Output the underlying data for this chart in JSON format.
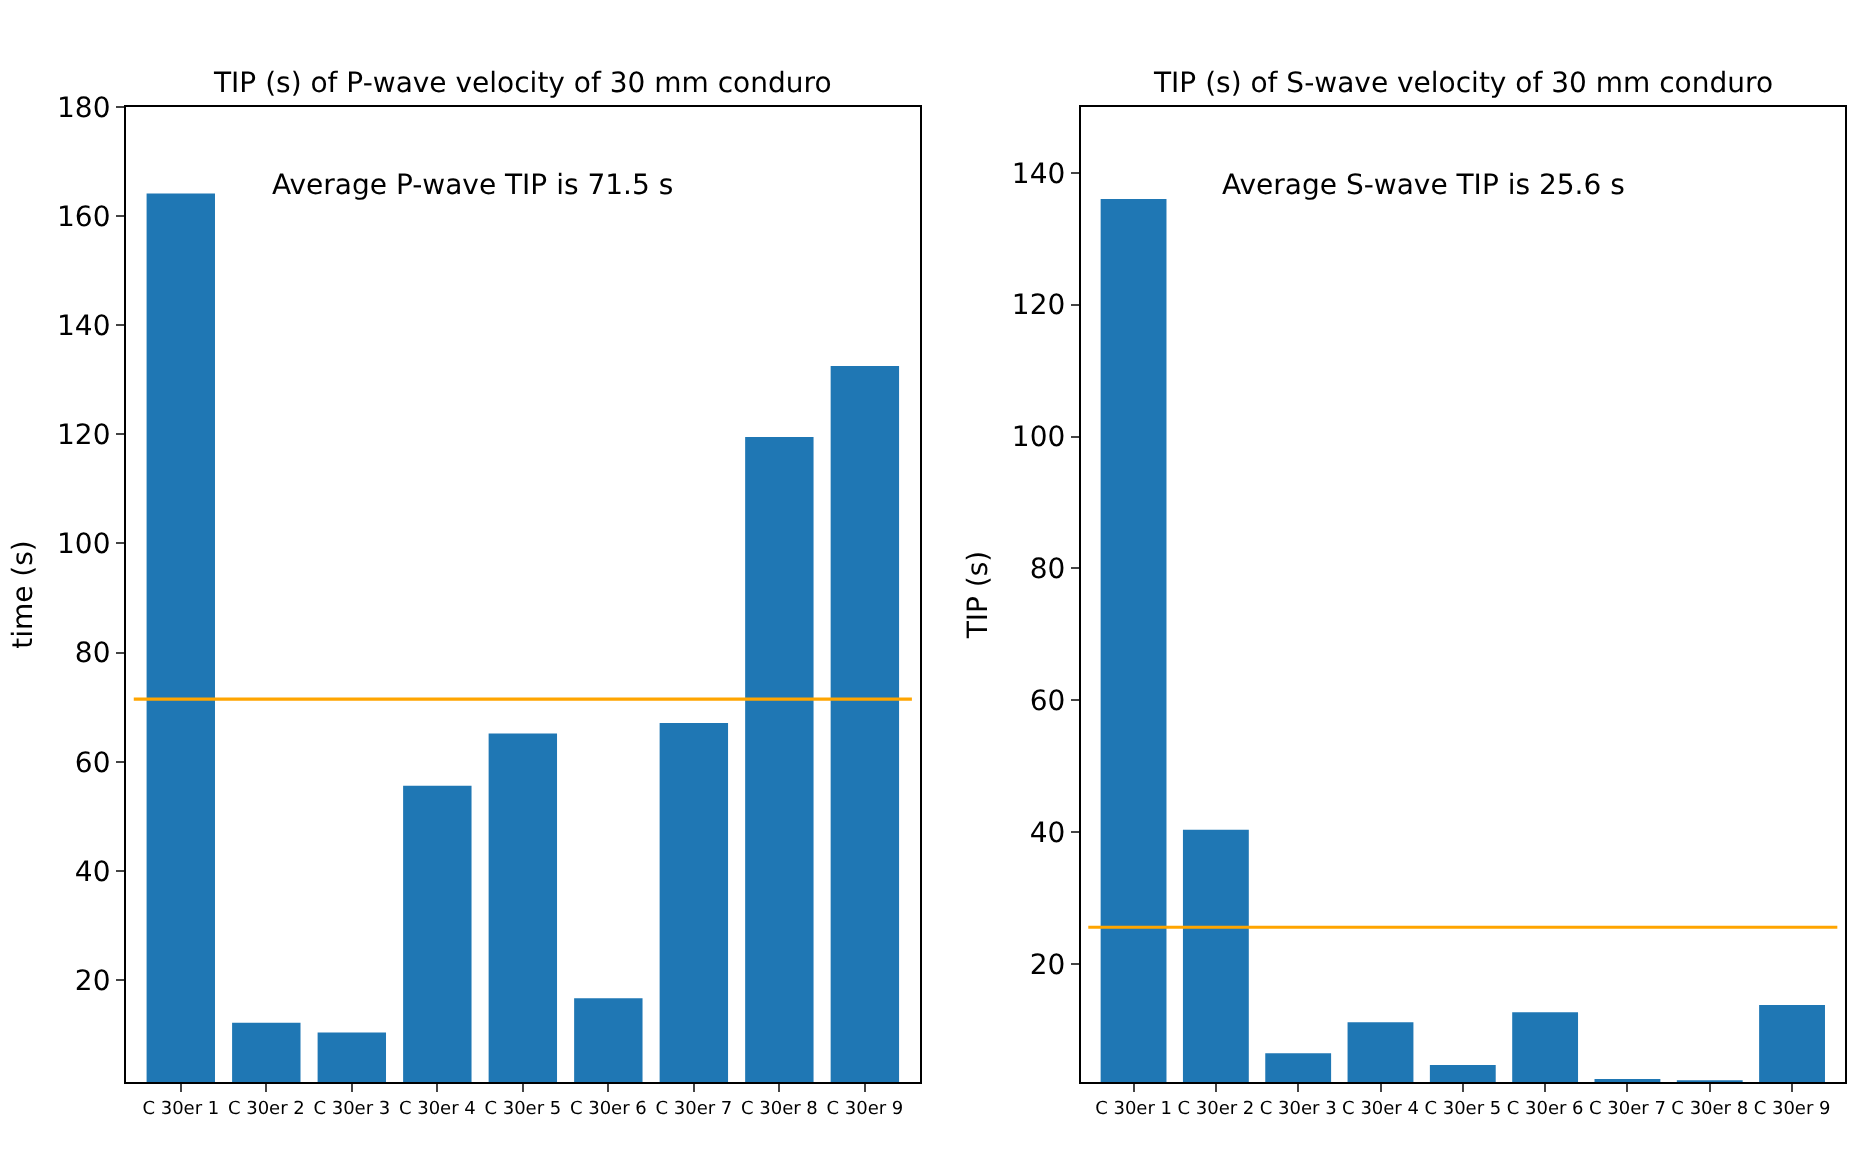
{
  "chart_data": [
    {
      "type": "bar",
      "title": "TIP (s) of P-wave velocity of 30 mm conduro",
      "ylabel": "time (s)",
      "categories": [
        "C 30er 1",
        "C 30er 2",
        "C 30er 3",
        "C 30er 4",
        "C 30er 5",
        "C 30er 6",
        "C 30er 7",
        "C 30er 8",
        "C 30er 9"
      ],
      "series": [
        {
          "color": "#1f77b4",
          "values": [
            164.1,
            12.2,
            10.4,
            55.6,
            65.2,
            16.7,
            67.1,
            119.5,
            132.5
          ]
        }
      ],
      "ylim": [
        1.3,
        180
      ],
      "yticks": [
        20,
        40,
        60,
        80,
        100,
        120,
        140,
        160,
        180
      ],
      "ref_lines": [
        {
          "axis": "y",
          "value": 71.5,
          "color": "#ffa500"
        }
      ],
      "annotations": [
        "Average P-wave TIP is 71.5 s"
      ]
    },
    {
      "type": "bar",
      "title": "TIP (s) of S-wave velocity of 30 mm conduro",
      "ylabel": "TIP (s)",
      "categories": [
        "C 30er 1",
        "C 30er 2",
        "C 30er 3",
        "C 30er 4",
        "C 30er 5",
        "C 30er 6",
        "C 30er 7",
        "C 30er 8",
        "C 30er 9"
      ],
      "series": [
        {
          "color": "#1f77b4",
          "values": [
            136.0,
            40.4,
            6.5,
            11.2,
            4.7,
            12.7,
            2.6,
            2.4,
            13.8
          ]
        }
      ],
      "ylim": [
        2.1,
        150
      ],
      "yticks": [
        20,
        40,
        60,
        80,
        100,
        120,
        140
      ],
      "ref_lines": [
        {
          "axis": "y",
          "value": 25.6,
          "color": "#ffa500"
        }
      ],
      "annotations": [
        "Average S-wave TIP is 25.6 s"
      ]
    }
  ]
}
